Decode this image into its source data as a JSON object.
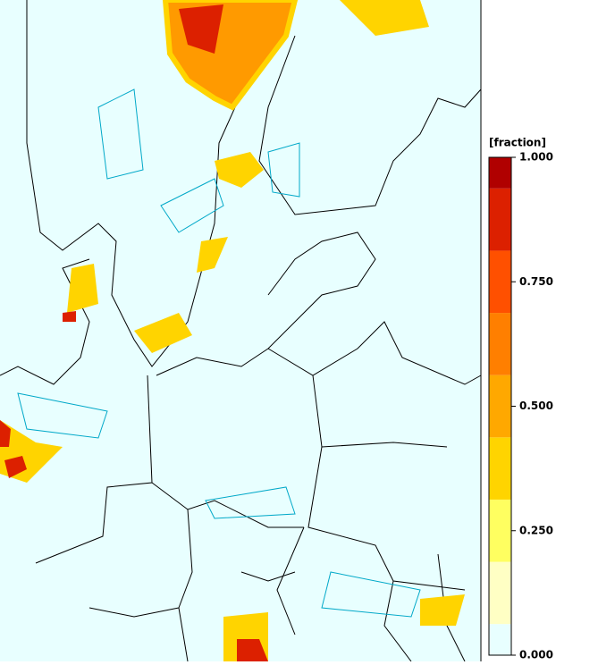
{
  "colorbar": {
    "label": "[fraction]",
    "levels": [
      0,
      0.0625,
      0.1875,
      0.3125,
      0.4375,
      0.5625,
      0.6875,
      0.8125,
      0.9375,
      1
    ],
    "colors": [
      "#e8ffff",
      "#ffffc4",
      "#ffff60",
      "#ffd400",
      "#ffa800",
      "#ff7f00",
      "#ff5000",
      "#dc2000",
      "#b00000"
    ],
    "lim": [
      0,
      1
    ],
    "ticks": [
      {
        "value": 0,
        "label": "0.000"
      },
      {
        "value": 0.25,
        "label": "0.250"
      },
      {
        "value": 0.5,
        "label": "0.500"
      },
      {
        "value": 0.75,
        "label": "0.750"
      },
      {
        "value": 1,
        "label": "1.000"
      }
    ]
  }
}
